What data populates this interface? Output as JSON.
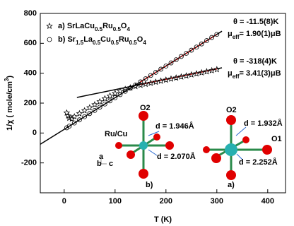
{
  "chart_data": {
    "type": "scatter",
    "x_label": "T (K)",
    "y_label": "1/χ ( mole/cm3)",
    "xlim": [
      -47,
      435
    ],
    "ylim": [
      -400,
      800
    ],
    "xticks": [
      0,
      100,
      200,
      300,
      400
    ],
    "yticks": [
      -200,
      0,
      200,
      400,
      600,
      800
    ],
    "series": [
      {
        "name": "a) SrLaCu0.5Ru0.5O4",
        "marker": "star",
        "color": "#000000",
        "x": [
          5,
          8,
          10,
          15,
          20,
          30,
          40,
          50,
          60,
          70,
          80,
          90,
          100,
          110,
          120,
          130,
          140,
          150,
          160,
          170,
          180,
          190,
          200,
          210,
          220,
          230,
          240,
          250,
          260,
          270,
          280,
          290,
          300
        ],
        "values": [
          135,
          115,
          100,
          95,
          110,
          130,
          150,
          170,
          190,
          210,
          230,
          248,
          265,
          280,
          293,
          303,
          312,
          320,
          327,
          334,
          341,
          348,
          355,
          362,
          369,
          376,
          383,
          390,
          397,
          404,
          411,
          418,
          425
        ]
      },
      {
        "name": "b) Sr1.5La0.5Cu0.5Ru0.5O4",
        "marker": "circle",
        "color": "#000000",
        "x": [
          5,
          10,
          20,
          30,
          40,
          50,
          60,
          70,
          80,
          90,
          100,
          110,
          120,
          130,
          140,
          150,
          160,
          170,
          180,
          190,
          200,
          210,
          220,
          230,
          240,
          250,
          260,
          270,
          280,
          290,
          300
        ],
        "values": [
          35,
          46,
          67,
          88,
          109,
          130,
          151,
          173,
          194,
          215,
          236,
          257,
          279,
          300,
          321,
          342,
          363,
          385,
          406,
          427,
          448,
          469,
          490,
          512,
          533,
          554,
          575,
          596,
          618,
          639,
          660
        ]
      }
    ],
    "fits": [
      {
        "color": "#000000",
        "x": [
          -47,
          310
        ],
        "values": [
          -75,
          681
        ]
      },
      {
        "color": "#000000",
        "x": [
          25,
          310
        ],
        "values": [
          238,
          436
        ]
      },
      {
        "color": "#e02020",
        "x": [
          150,
          300
        ],
        "values": [
          342,
          660
        ]
      },
      {
        "color": "#e02020",
        "x": [
          150,
          300
        ],
        "values": [
          325,
          429
        ]
      }
    ],
    "annotations": [
      "θ = -11.5(8)K",
      "μeff= 1.90(1)μB",
      "θ = -318(4)K",
      "μeff= 3.41(3)μB",
      "O2",
      "Ru/Cu",
      "d = 1.946Å",
      "d = 2.070Å",
      "b)",
      "O2",
      "d = 1.932Å",
      "O1",
      "d = 2.252Å",
      "a)",
      "a",
      "b",
      "c"
    ]
  }
}
